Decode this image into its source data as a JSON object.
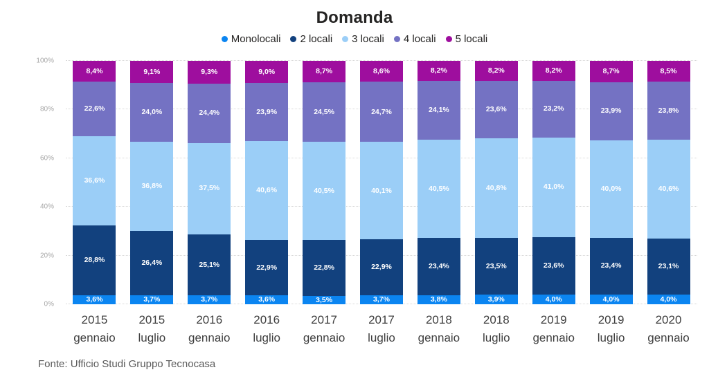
{
  "title": "Domanda",
  "source_note": "Fonte: Ufficio Studi Gruppo Tecnocasa",
  "colors": {
    "monolocali": "#0B85F1",
    "locali2": "#12417E",
    "locali3": "#9BCEF7",
    "locali4": "#7472C3",
    "locali5": "#9E0E9E"
  },
  "chart_data": {
    "type": "bar",
    "stacked": true,
    "percent_stack": true,
    "title": "Domanda",
    "xlabel": "",
    "ylabel": "",
    "ylim": [
      0,
      100
    ],
    "grid": "horizontal-dotted",
    "legend_position": "top-center",
    "y_ticks": [
      "0%",
      "20%",
      "40%",
      "60%",
      "80%",
      "100%"
    ],
    "categories": [
      {
        "year": "2015",
        "month": "gennaio"
      },
      {
        "year": "2015",
        "month": "luglio"
      },
      {
        "year": "2016",
        "month": "gennaio"
      },
      {
        "year": "2016",
        "month": "luglio"
      },
      {
        "year": "2017",
        "month": "gennaio"
      },
      {
        "year": "2017",
        "month": "luglio"
      },
      {
        "year": "2018",
        "month": "gennaio"
      },
      {
        "year": "2018",
        "month": "luglio"
      },
      {
        "year": "2019",
        "month": "gennaio"
      },
      {
        "year": "2019",
        "month": "luglio"
      },
      {
        "year": "2020",
        "month": "gennaio"
      }
    ],
    "series": [
      {
        "name": "Monolocali",
        "color": "#0B85F1",
        "values": [
          3.6,
          3.7,
          3.7,
          3.6,
          3.5,
          3.7,
          3.8,
          3.9,
          4.0,
          4.0,
          4.0
        ],
        "labels": [
          "3,6%",
          "3,7%",
          "3,7%",
          "3,6%",
          "3,5%",
          "3,7%",
          "3,8%",
          "3,9%",
          "4,0%",
          "4,0%",
          "4,0%"
        ]
      },
      {
        "name": "2 locali",
        "color": "#12417E",
        "values": [
          28.8,
          26.4,
          25.1,
          22.9,
          22.8,
          22.9,
          23.4,
          23.5,
          23.6,
          23.4,
          23.1
        ],
        "labels": [
          "28,8%",
          "26,4%",
          "25,1%",
          "22,9%",
          "22,8%",
          "22,9%",
          "23,4%",
          "23,5%",
          "23,6%",
          "23,4%",
          "23,1%"
        ]
      },
      {
        "name": "3 locali",
        "color": "#9BCEF7",
        "values": [
          36.6,
          36.8,
          37.5,
          40.6,
          40.5,
          40.1,
          40.5,
          40.8,
          41.0,
          40.0,
          40.6
        ],
        "labels": [
          "36,6%",
          "36,8%",
          "37,5%",
          "40,6%",
          "40,5%",
          "40,1%",
          "40,5%",
          "40,8%",
          "41,0%",
          "40,0%",
          "40,6%"
        ]
      },
      {
        "name": "4 locali",
        "color": "#7472C3",
        "values": [
          22.6,
          24.0,
          24.4,
          23.9,
          24.5,
          24.7,
          24.1,
          23.6,
          23.2,
          23.9,
          23.8
        ],
        "labels": [
          "22,6%",
          "24,0%",
          "24,4%",
          "23,9%",
          "24,5%",
          "24,7%",
          "24,1%",
          "23,6%",
          "23,2%",
          "23,9%",
          "23,8%"
        ]
      },
      {
        "name": "5 locali",
        "color": "#9E0E9E",
        "values": [
          8.4,
          9.1,
          9.3,
          9.0,
          8.7,
          8.6,
          8.2,
          8.2,
          8.2,
          8.7,
          8.5
        ],
        "labels": [
          "8,4%",
          "9,1%",
          "9,3%",
          "9,0%",
          "8,7%",
          "8,6%",
          "8,2%",
          "8,2%",
          "8,2%",
          "8,7%",
          "8,5%"
        ]
      }
    ]
  }
}
